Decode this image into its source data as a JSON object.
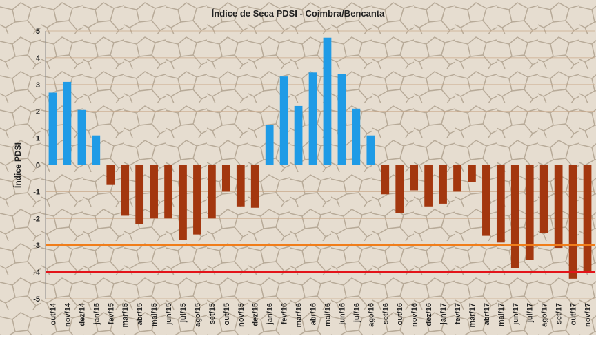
{
  "chart_data": {
    "type": "bar",
    "title": "Índice de Seca PDSI - Coimbra/Bencanta",
    "y_label": "Índice PDSI",
    "categories": [
      "out/14",
      "nov/14",
      "dez/14",
      "jan/15",
      "fev/15",
      "mar/15",
      "abr/15",
      "mai/15",
      "jun/15",
      "jul/15",
      "ago/15",
      "set/15",
      "out/15",
      "nov/15",
      "dez/15",
      "jan/16",
      "fev/16",
      "mar/16",
      "abr/16",
      "mai/16",
      "jun/16",
      "jul/16",
      "ago/16",
      "set/16",
      "out/16",
      "nov/16",
      "dez/16",
      "jan/17",
      "fev/17",
      "mar/17",
      "abr/17",
      "mai/17",
      "jun/17",
      "jul/17",
      "ago/17",
      "set/17",
      "out/17",
      "nov/17"
    ],
    "values": [
      2.7,
      3.1,
      2.05,
      1.1,
      -0.75,
      -1.9,
      -2.2,
      -2.0,
      -2.0,
      -2.8,
      -2.6,
      -2.0,
      -1.0,
      -1.55,
      -1.6,
      1.5,
      3.3,
      2.2,
      3.45,
      4.75,
      3.4,
      2.1,
      1.1,
      -1.1,
      -1.8,
      -0.95,
      -1.55,
      -1.45,
      -1.0,
      -0.65,
      -2.65,
      -2.9,
      -3.85,
      -3.55,
      -2.55,
      -3.1,
      -4.25,
      -3.95
    ],
    "positive_color": "#1f9be6",
    "negative_color": "#a3370f",
    "ylim": [
      -5,
      5
    ],
    "yticks": [
      -5,
      -4,
      -3,
      -2,
      -1,
      0,
      1,
      2,
      3,
      4,
      5
    ],
    "grid": true,
    "reference_lines": [
      {
        "value": -3,
        "color": "#f07d1a"
      },
      {
        "value": -4,
        "color": "#e3141a"
      }
    ]
  }
}
